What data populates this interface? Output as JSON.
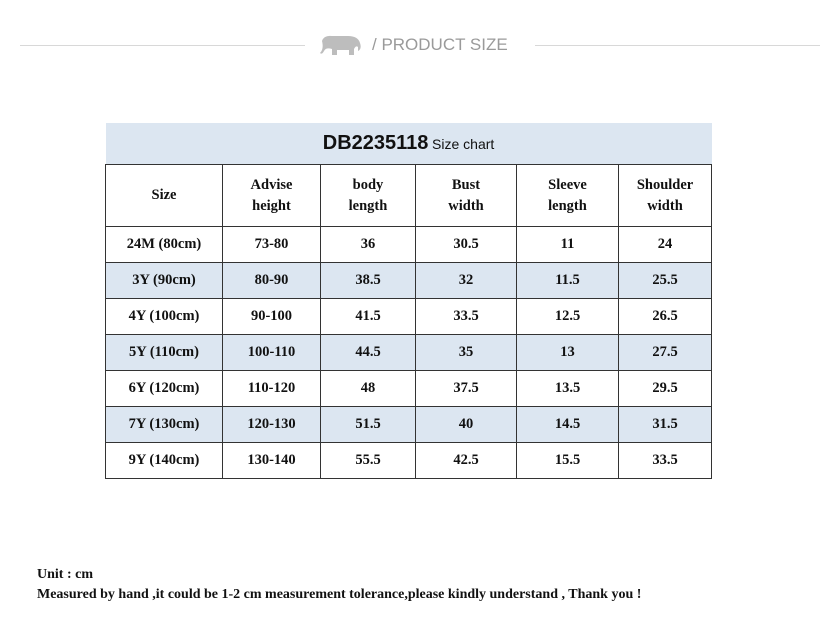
{
  "header": {
    "title": "/ PRODUCT SIZE"
  },
  "table": {
    "code": "DB2235118",
    "caption": "Size chart",
    "columns": [
      [
        "Size"
      ],
      [
        "Advise",
        "height"
      ],
      [
        "body",
        "length"
      ],
      [
        "Bust",
        "width"
      ],
      [
        "Sleeve",
        "length"
      ],
      [
        "Shoulder",
        "width"
      ]
    ],
    "rows": [
      [
        "24M (80cm)",
        "73-80",
        "36",
        "30.5",
        "11",
        "24"
      ],
      [
        "3Y (90cm)",
        "80-90",
        "38.5",
        "32",
        "11.5",
        "25.5"
      ],
      [
        "4Y (100cm)",
        "90-100",
        "41.5",
        "33.5",
        "12.5",
        "26.5"
      ],
      [
        "5Y (110cm)",
        "100-110",
        "44.5",
        "35",
        "13",
        "27.5"
      ],
      [
        "6Y (120cm)",
        "110-120",
        "48",
        "37.5",
        "13.5",
        "29.5"
      ],
      [
        "7Y (130cm)",
        "120-130",
        "51.5",
        "40",
        "14.5",
        "31.5"
      ],
      [
        "9Y (140cm)",
        "130-140",
        "55.5",
        "42.5",
        "15.5",
        "33.5"
      ]
    ]
  },
  "footer": {
    "unit": "Unit : cm",
    "note": "Measured by hand ,it could be 1-2 cm measurement tolerance,please kindly understand , Thank you !"
  }
}
